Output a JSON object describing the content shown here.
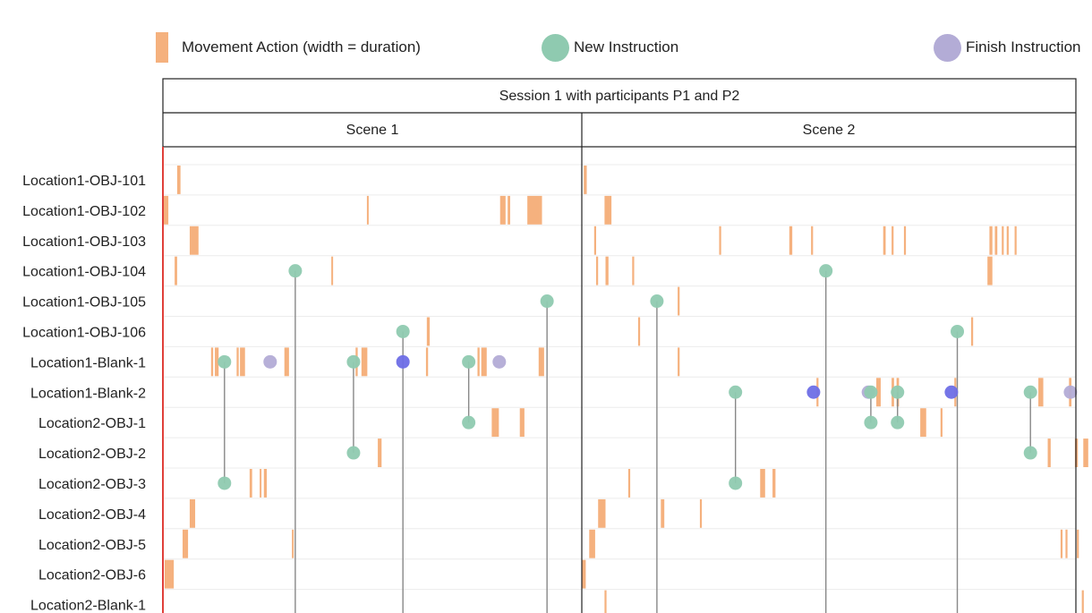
{
  "legend": {
    "movement_label": "Movement Action (width = duration)",
    "new_label": "New Instruction",
    "finish_label": "Finish Instruction"
  },
  "colors": {
    "movement": "#f4a870",
    "new_instruction": "#8fcab0",
    "finish_instruction": "#b3acd6",
    "overlap": "#6e6ee6",
    "row_divider": "#ececec",
    "frame": "#222222",
    "left_axis": "#e0403a"
  },
  "chart_data": {
    "type": "timeline",
    "title": "Session 1 with participants P1 and P2",
    "rows": [
      "Location1-OBJ-101",
      "Location1-OBJ-102",
      "Location1-OBJ-103",
      "Location1-OBJ-104",
      "Location1-OBJ-105",
      "Location1-OBJ-106",
      "Location1-Blank-1",
      "Location1-Blank-2",
      "Location2-OBJ-1",
      "Location2-OBJ-2",
      "Location2-OBJ-3",
      "Location2-OBJ-4",
      "Location2-OBJ-5",
      "Location2-OBJ-6",
      "Location2-Blank-1"
    ],
    "scenes": [
      {
        "name": "Scene 1",
        "movements": [
          {
            "row": 0,
            "start": 0.034,
            "end": 0.042
          },
          {
            "row": 1,
            "start": 0.0,
            "end": 0.013
          },
          {
            "row": 1,
            "start": 0.487,
            "end": 0.491
          },
          {
            "row": 1,
            "start": 0.805,
            "end": 0.818
          },
          {
            "row": 1,
            "start": 0.823,
            "end": 0.829
          },
          {
            "row": 1,
            "start": 0.87,
            "end": 0.905
          },
          {
            "row": 2,
            "start": 0.064,
            "end": 0.085
          },
          {
            "row": 3,
            "start": 0.028,
            "end": 0.034
          },
          {
            "row": 3,
            "start": 0.402,
            "end": 0.406
          },
          {
            "row": 5,
            "start": 0.63,
            "end": 0.637
          },
          {
            "row": 6,
            "start": 0.115,
            "end": 0.12
          },
          {
            "row": 6,
            "start": 0.124,
            "end": 0.133
          },
          {
            "row": 6,
            "start": 0.176,
            "end": 0.181
          },
          {
            "row": 6,
            "start": 0.184,
            "end": 0.196
          },
          {
            "row": 6,
            "start": 0.29,
            "end": 0.301
          },
          {
            "row": 6,
            "start": 0.46,
            "end": 0.465
          },
          {
            "row": 6,
            "start": 0.474,
            "end": 0.488
          },
          {
            "row": 6,
            "start": 0.628,
            "end": 0.633
          },
          {
            "row": 6,
            "start": 0.751,
            "end": 0.756
          },
          {
            "row": 6,
            "start": 0.76,
            "end": 0.773
          },
          {
            "row": 6,
            "start": 0.897,
            "end": 0.91
          },
          {
            "row": 8,
            "start": 0.785,
            "end": 0.802
          },
          {
            "row": 8,
            "start": 0.852,
            "end": 0.863
          },
          {
            "row": 9,
            "start": 0.513,
            "end": 0.522
          },
          {
            "row": 10,
            "start": 0.207,
            "end": 0.213
          },
          {
            "row": 10,
            "start": 0.231,
            "end": 0.235
          },
          {
            "row": 10,
            "start": 0.241,
            "end": 0.248
          },
          {
            "row": 11,
            "start": 0.064,
            "end": 0.077
          },
          {
            "row": 12,
            "start": 0.047,
            "end": 0.06
          },
          {
            "row": 12,
            "start": 0.308,
            "end": 0.312
          },
          {
            "row": 13,
            "start": 0.004,
            "end": 0.026
          }
        ],
        "instructions": [
          {
            "type": "new",
            "row": 6,
            "t": 0.147
          },
          {
            "type": "new",
            "row": 10,
            "t": 0.147
          },
          {
            "type": "finish",
            "row": 6,
            "t": 0.256
          },
          {
            "type": "new",
            "row": 3,
            "t": 0.316
          },
          {
            "type": "new",
            "row": 14,
            "t": 0.316
          },
          {
            "type": "new",
            "row": 6,
            "t": 0.455
          },
          {
            "type": "new",
            "row": 9,
            "t": 0.455
          },
          {
            "type": "new",
            "row": 5,
            "t": 0.573
          },
          {
            "type": "new",
            "row": 14,
            "t": 0.573
          },
          {
            "type": "overlap",
            "row": 6,
            "t": 0.573
          },
          {
            "type": "new",
            "row": 6,
            "t": 0.73
          },
          {
            "type": "new",
            "row": 8,
            "t": 0.73
          },
          {
            "type": "finish",
            "row": 6,
            "t": 0.803
          },
          {
            "type": "new",
            "row": 4,
            "t": 0.917
          },
          {
            "type": "new",
            "row": 14,
            "t": 0.917
          }
        ]
      },
      {
        "name": "Scene 2",
        "movements": [
          {
            "row": 0,
            "start": 0.004,
            "end": 0.01
          },
          {
            "row": 1,
            "start": 0.046,
            "end": 0.06
          },
          {
            "row": 2,
            "start": 0.025,
            "end": 0.029
          },
          {
            "row": 2,
            "start": 0.278,
            "end": 0.282
          },
          {
            "row": 2,
            "start": 0.42,
            "end": 0.426
          },
          {
            "row": 2,
            "start": 0.464,
            "end": 0.468
          },
          {
            "row": 2,
            "start": 0.61,
            "end": 0.615
          },
          {
            "row": 2,
            "start": 0.627,
            "end": 0.631
          },
          {
            "row": 2,
            "start": 0.652,
            "end": 0.656
          },
          {
            "row": 2,
            "start": 0.825,
            "end": 0.831
          },
          {
            "row": 2,
            "start": 0.836,
            "end": 0.841
          },
          {
            "row": 2,
            "start": 0.85,
            "end": 0.854
          },
          {
            "row": 2,
            "start": 0.86,
            "end": 0.864
          },
          {
            "row": 2,
            "start": 0.876,
            "end": 0.88
          },
          {
            "row": 3,
            "start": 0.029,
            "end": 0.033
          },
          {
            "row": 3,
            "start": 0.048,
            "end": 0.054
          },
          {
            "row": 3,
            "start": 0.102,
            "end": 0.106
          },
          {
            "row": 3,
            "start": 0.821,
            "end": 0.831
          },
          {
            "row": 4,
            "start": 0.194,
            "end": 0.198
          },
          {
            "row": 5,
            "start": 0.114,
            "end": 0.118
          },
          {
            "row": 5,
            "start": 0.788,
            "end": 0.792
          },
          {
            "row": 6,
            "start": 0.194,
            "end": 0.198
          },
          {
            "row": 7,
            "start": 0.475,
            "end": 0.479
          },
          {
            "row": 7,
            "start": 0.596,
            "end": 0.605
          },
          {
            "row": 7,
            "start": 0.627,
            "end": 0.632
          },
          {
            "row": 7,
            "start": 0.637,
            "end": 0.642
          },
          {
            "row": 7,
            "start": 0.754,
            "end": 0.758
          },
          {
            "row": 7,
            "start": 0.924,
            "end": 0.934
          },
          {
            "row": 7,
            "start": 0.986,
            "end": 0.991
          },
          {
            "row": 8,
            "start": 0.685,
            "end": 0.697
          },
          {
            "row": 8,
            "start": 0.726,
            "end": 0.73
          },
          {
            "row": 9,
            "start": 0.943,
            "end": 0.949
          },
          {
            "row": 9,
            "start": 0.998,
            "end": 1.004
          },
          {
            "row": 9,
            "start": 1.015,
            "end": 1.025
          },
          {
            "row": 10,
            "start": 0.094,
            "end": 0.098
          },
          {
            "row": 10,
            "start": 0.361,
            "end": 0.371
          },
          {
            "row": 10,
            "start": 0.386,
            "end": 0.392
          },
          {
            "row": 11,
            "start": 0.033,
            "end": 0.048
          },
          {
            "row": 11,
            "start": 0.16,
            "end": 0.167
          },
          {
            "row": 11,
            "start": 0.239,
            "end": 0.243
          },
          {
            "row": 12,
            "start": 0.015,
            "end": 0.027
          },
          {
            "row": 12,
            "start": 0.969,
            "end": 0.973
          },
          {
            "row": 12,
            "start": 0.979,
            "end": 0.983
          },
          {
            "row": 12,
            "start": 1.002,
            "end": 1.006
          },
          {
            "row": 13,
            "start": 0.0,
            "end": 0.008
          },
          {
            "row": 14,
            "start": 0.046,
            "end": 0.05
          },
          {
            "row": 14,
            "start": 1.012,
            "end": 1.016
          }
        ],
        "instructions": [
          {
            "type": "new",
            "row": 4,
            "t": 0.152
          },
          {
            "type": "new",
            "row": 14,
            "t": 0.152
          },
          {
            "type": "new",
            "row": 3,
            "t": 0.494
          },
          {
            "type": "new",
            "row": 14,
            "t": 0.494
          },
          {
            "type": "new",
            "row": 7,
            "t": 0.311
          },
          {
            "type": "new",
            "row": 10,
            "t": 0.311
          },
          {
            "type": "overlap",
            "row": 7,
            "t": 0.469
          },
          {
            "type": "finish",
            "row": 7,
            "t": 0.58
          },
          {
            "type": "new",
            "row": 7,
            "t": 0.585
          },
          {
            "type": "new",
            "row": 8,
            "t": 0.585
          },
          {
            "type": "new",
            "row": 7,
            "t": 0.639
          },
          {
            "type": "new",
            "row": 8,
            "t": 0.639
          },
          {
            "type": "overlap",
            "row": 7,
            "t": 0.748
          },
          {
            "type": "new",
            "row": 5,
            "t": 0.76
          },
          {
            "type": "new",
            "row": 14,
            "t": 0.76
          },
          {
            "type": "new",
            "row": 7,
            "t": 0.908
          },
          {
            "type": "new",
            "row": 9,
            "t": 0.908
          },
          {
            "type": "finish",
            "row": 7,
            "t": 0.989
          }
        ]
      }
    ],
    "connectors": [
      {
        "scene": 0,
        "t": 0.147,
        "from": 6,
        "to": 10
      },
      {
        "scene": 0,
        "t": 0.316,
        "from": 3,
        "to": 14
      },
      {
        "scene": 0,
        "t": 0.455,
        "from": 6,
        "to": 9
      },
      {
        "scene": 0,
        "t": 0.573,
        "from": 5,
        "to": 14
      },
      {
        "scene": 0,
        "t": 0.73,
        "from": 6,
        "to": 8
      },
      {
        "scene": 0,
        "t": 0.917,
        "from": 4,
        "to": 14
      },
      {
        "scene": 1,
        "t": 0.152,
        "from": 4,
        "to": 14
      },
      {
        "scene": 1,
        "t": 0.311,
        "from": 7,
        "to": 10
      },
      {
        "scene": 1,
        "t": 0.494,
        "from": 3,
        "to": 14
      },
      {
        "scene": 1,
        "t": 0.585,
        "from": 7,
        "to": 8
      },
      {
        "scene": 1,
        "t": 0.639,
        "from": 7,
        "to": 8
      },
      {
        "scene": 1,
        "t": 0.76,
        "from": 5,
        "to": 14
      },
      {
        "scene": 1,
        "t": 0.908,
        "from": 7,
        "to": 9
      }
    ]
  }
}
